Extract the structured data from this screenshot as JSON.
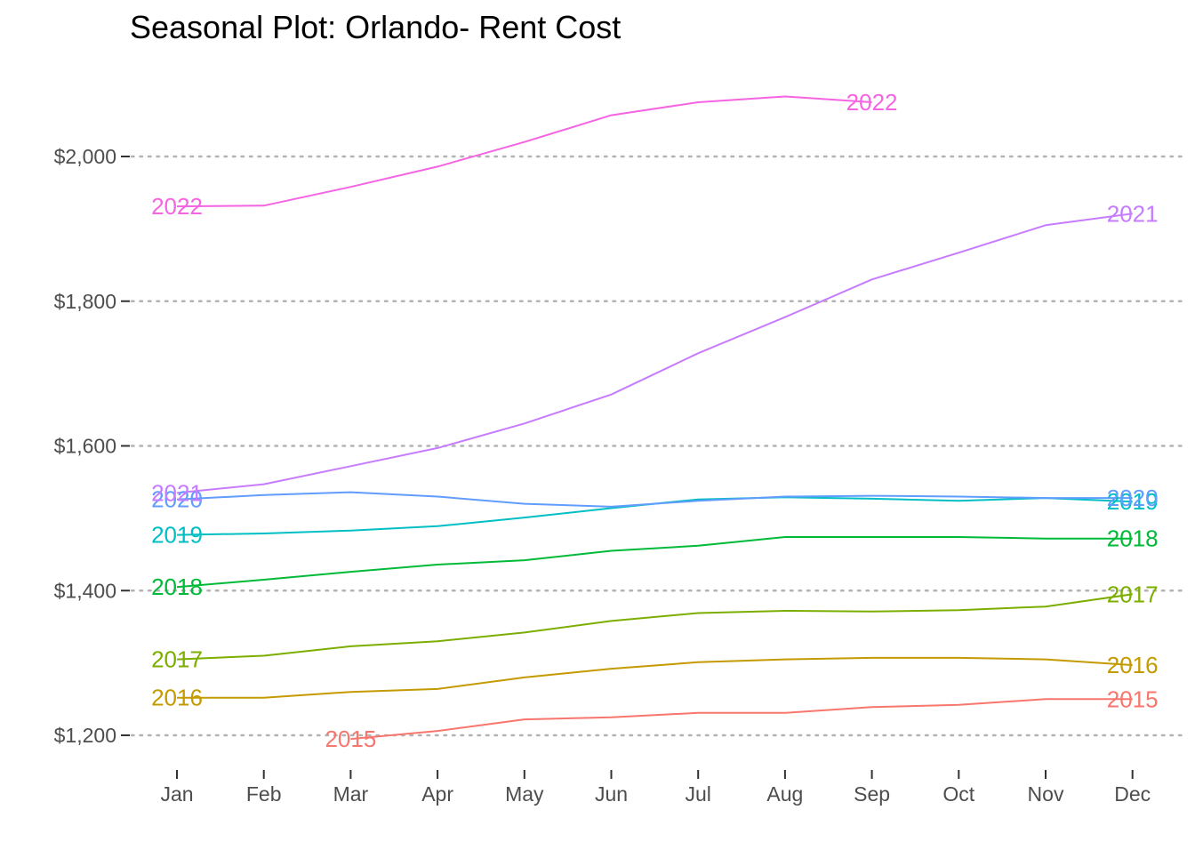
{
  "chart_data": {
    "type": "line",
    "title": "Seasonal Plot: Orlando- Rent Cost",
    "xlabel": "",
    "ylabel": "",
    "categories": [
      "Jan",
      "Feb",
      "Mar",
      "Apr",
      "May",
      "Jun",
      "Jul",
      "Aug",
      "Sep",
      "Oct",
      "Nov",
      "Dec"
    ],
    "ylim": [
      1170,
      2110
    ],
    "yticks": [
      1200,
      1400,
      1600,
      1800,
      2000
    ],
    "ytick_labels": [
      "$1,200",
      "$1,400",
      "$1,600",
      "$1,800",
      "$2,000"
    ],
    "grid": "horizontal dotted",
    "legend": "none (series labeled at line ends)",
    "series": [
      {
        "name": "2015",
        "color": "#F8766D",
        "values": [
          null,
          null,
          1195,
          1206,
          1222,
          1225,
          1231,
          1231,
          1239,
          1242,
          1250,
          1250
        ]
      },
      {
        "name": "2016",
        "color": "#C49A00",
        "values": [
          1252,
          1252,
          1260,
          1264,
          1280,
          1292,
          1301,
          1305,
          1307,
          1307,
          1305,
          1297
        ]
      },
      {
        "name": "2017",
        "color": "#7CAE00",
        "values": [
          1305,
          1310,
          1323,
          1330,
          1342,
          1358,
          1369,
          1372,
          1371,
          1373,
          1378,
          1395
        ]
      },
      {
        "name": "2018",
        "color": "#00BA38",
        "values": [
          1405,
          1415,
          1426,
          1436,
          1442,
          1455,
          1462,
          1474,
          1474,
          1474,
          1472,
          1472
        ]
      },
      {
        "name": "2019",
        "color": "#00BFC4",
        "values": [
          1477,
          1479,
          1483,
          1489,
          1501,
          1514,
          1526,
          1529,
          1527,
          1524,
          1528,
          1523
        ]
      },
      {
        "name": "2020",
        "color": "#619CFF",
        "values": [
          1526,
          1532,
          1536,
          1530,
          1520,
          1516,
          1524,
          1530,
          1531,
          1530,
          1528,
          1528
        ]
      },
      {
        "name": "2021",
        "color": "#C77CFF",
        "values": [
          1535,
          1547,
          1572,
          1597,
          1631,
          1671,
          1728,
          1778,
          1830,
          1867,
          1905,
          1921
        ]
      },
      {
        "name": "2022",
        "color": "#F564E3",
        "values": [
          1931,
          1932,
          1958,
          1986,
          2020,
          2057,
          2075,
          2083,
          2075,
          null,
          null,
          null
        ]
      }
    ]
  }
}
